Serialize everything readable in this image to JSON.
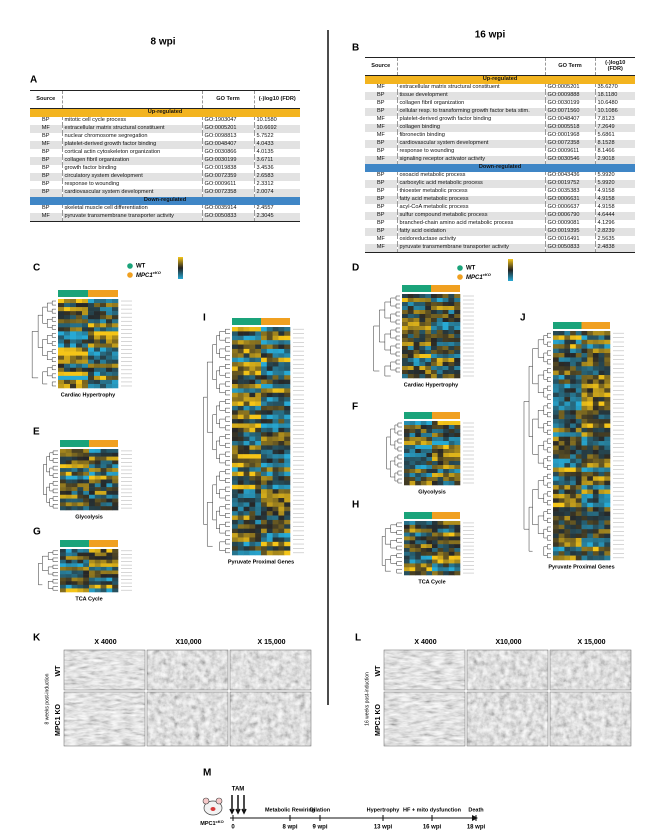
{
  "headers": {
    "left": "8 wpi",
    "right": "16 wpi"
  },
  "panel_labels": [
    "A",
    "B",
    "C",
    "D",
    "E",
    "F",
    "G",
    "H",
    "I",
    "J",
    "K",
    "L",
    "M"
  ],
  "table_a": {
    "columns": [
      "Source",
      "GO Term",
      "(-)log10 (FDR)"
    ],
    "sections": [
      {
        "title": "Up-regulated",
        "rows": [
          [
            "BP",
            "mitotic cell cycle process",
            "GO:1903047",
            "10.1580"
          ],
          [
            "MF",
            "extracellular matrix structural constituent",
            "GO:0005201",
            "10.6692"
          ],
          [
            "BP",
            "nuclear chromosome segregation",
            "GO:0098813",
            "5.7522"
          ],
          [
            "MF",
            "platelet-derived growth factor binding",
            "GO:0048407",
            "4.0433"
          ],
          [
            "BP",
            "cortical actin cytoskeleton organization",
            "GO:0030866",
            "4.0135"
          ],
          [
            "BP",
            "collagen fibril organization",
            "GO:0030199",
            "3.6711"
          ],
          [
            "BP",
            "growth factor binding",
            "GO:0019838",
            "3.4536"
          ],
          [
            "BP",
            "circulatory system development",
            "GO:0072359",
            "2.6583"
          ],
          [
            "BP",
            "response to wounding",
            "GO:0009611",
            "2.3312"
          ],
          [
            "BP",
            "cardiovascular system development",
            "GO:0072358",
            "2.0074"
          ]
        ]
      },
      {
        "title": "Down-regulated",
        "rows": [
          [
            "BP",
            "skeletal muscle cell differentiation",
            "GO:0035914",
            "2.4557"
          ],
          [
            "MF",
            "pyruvate transmembrane transporter activity",
            "GO:0050833",
            "2.3045"
          ]
        ]
      }
    ]
  },
  "table_b": {
    "columns": [
      "Source",
      "GO Term",
      "(-)log10 (FDR)"
    ],
    "sections": [
      {
        "title": "Up-regulated",
        "rows": [
          [
            "MF",
            "extracellular matrix structural constituent",
            "GO:0005201",
            "35.6270"
          ],
          [
            "BP",
            "tissue development",
            "GO:0009888",
            "18.1180"
          ],
          [
            "BP",
            "collagen fibril organization",
            "GO:0030199",
            "10.6480"
          ],
          [
            "BP",
            "cellular resp. to transforming growth factor beta stim.",
            "GO:0071560",
            "10.1086"
          ],
          [
            "MF",
            "platelet-derived growth factor binding",
            "GO:0048407",
            "7.8123"
          ],
          [
            "MF",
            "collagen binding",
            "GO:0005518",
            "7.2649"
          ],
          [
            "MF",
            "fibronectin binding",
            "GO:0001968",
            "5.6861"
          ],
          [
            "BP",
            "cardiovascular system development",
            "GO:0072358",
            "8.1528"
          ],
          [
            "BP",
            "response to wounding",
            "GO:0009611",
            "8.1466"
          ],
          [
            "MF",
            "signaling receptor activator activity",
            "GO:0030546",
            "2.9018"
          ]
        ]
      },
      {
        "title": "Down-regulated",
        "rows": [
          [
            "BP",
            "oxoacid metabolic process",
            "GO:0043436",
            "5.9920"
          ],
          [
            "BP",
            "carboxylic acid metabolic process",
            "GO:0019752",
            "5.9920"
          ],
          [
            "BP",
            "thioester metabolic process",
            "GO:0035383",
            "4.9158"
          ],
          [
            "BP",
            "fatty acid metabolic process",
            "GO:0006631",
            "4.9158"
          ],
          [
            "BP",
            "acyl-CoA metabolic process",
            "GO:0006637",
            "4.9158"
          ],
          [
            "BP",
            "sulfur compound metabolic process",
            "GO:0006790",
            "4.6444"
          ],
          [
            "BP",
            "branched-chain amino acid metabolic process",
            "GO:0009081",
            "4.1296"
          ],
          [
            "BP",
            "fatty acid oxidation",
            "GO:0019395",
            "2.8239"
          ],
          [
            "MF",
            "oxidoreductase activity",
            "GO:0016491",
            "2.5635"
          ],
          [
            "MF",
            "pyruvate transmembrane transporter activity",
            "GO:0050833",
            "2.4838"
          ]
        ]
      }
    ]
  },
  "heatmap_legend": {
    "wt": "WT",
    "mpc1": "MPC1",
    "mpc1_sup": "cKO"
  },
  "heatmap_titles": {
    "cardiac_hypertrophy": "Cardiac Hypertrophy",
    "glycolysis": "Glycolysis",
    "tca_cycle": "TCA Cycle",
    "pyruvate_proximal": "Pyruvate Proximal Genes"
  },
  "microscopy": {
    "magnifications": [
      "X 4000",
      "X10,000",
      "X 15,000"
    ],
    "rows": [
      "WT",
      "MPC1 KO"
    ],
    "side_k": "8 weeks post-induction",
    "side_l": "16 weeks post-induction"
  },
  "timeline": {
    "mouse": "MPC1",
    "mouse_sup": "cKO",
    "treatment": "TAM",
    "start": "0",
    "events": [
      {
        "label": "Metabolic Rewiring",
        "time": "8 wpi"
      },
      {
        "label": "Dilation",
        "time": "9 wpi"
      },
      {
        "label": "Hypertrophy",
        "time": "13 wpi"
      },
      {
        "label": "HF + mito dysfunction",
        "time": "16 wpi"
      },
      {
        "label": "Death",
        "time": "18 wpi"
      }
    ]
  }
}
